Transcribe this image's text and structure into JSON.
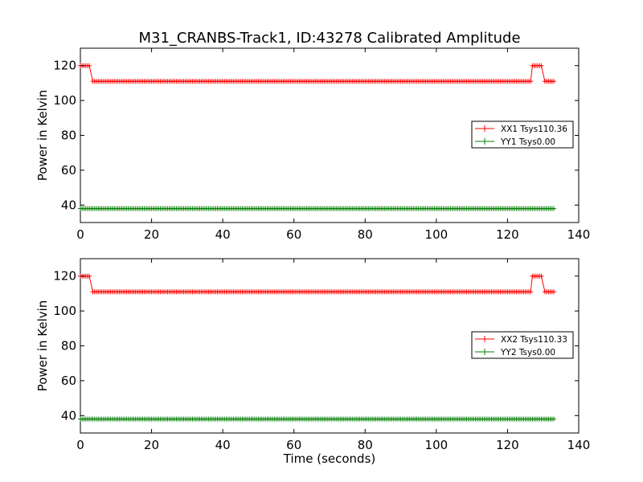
{
  "chart_data": {
    "title": "M31_CRANBS-Track1, ID:43278 Calibrated Amplitude",
    "xlabel": "Time (seconds)",
    "grid": false,
    "panels": [
      {
        "type": "line",
        "ylabel": "Power in Kelvin",
        "xlim": [
          0,
          140
        ],
        "ylim": [
          30,
          130
        ],
        "xticks": [
          "0",
          "20",
          "40",
          "60",
          "80",
          "100",
          "120",
          "140"
        ],
        "yticks": [
          "40",
          "60",
          "80",
          "100",
          "120"
        ],
        "legend_position": "center-right",
        "series": [
          {
            "name": "XX1 Tsys110.36",
            "color": "#ff0000",
            "marker": "+",
            "x_range": [
              0,
              133
            ],
            "segments": [
              {
                "x": [
                  0,
                  2.5
                ],
                "y": 120
              },
              {
                "x": [
                  3.5,
                  126.5
                ],
                "y": 111
              },
              {
                "x": [
                  127,
                  129.5
                ],
                "y": 120
              },
              {
                "x": [
                  130.5,
                  133
                ],
                "y": 111
              }
            ]
          },
          {
            "name": "YY1 Tsys0.00",
            "color": "#008000",
            "marker": "+",
            "x_range": [
              0,
              133
            ],
            "segments": [
              {
                "x": [
                  0,
                  133
                ],
                "y": 38
              }
            ]
          }
        ]
      },
      {
        "type": "line",
        "ylabel": "Power in Kelvin",
        "xlim": [
          0,
          140
        ],
        "ylim": [
          30,
          130
        ],
        "xticks": [
          "0",
          "20",
          "40",
          "60",
          "80",
          "100",
          "120",
          "140"
        ],
        "yticks": [
          "40",
          "60",
          "80",
          "100",
          "120"
        ],
        "legend_position": "center-right",
        "series": [
          {
            "name": "XX2 Tsys110.33",
            "color": "#ff0000",
            "marker": "+",
            "x_range": [
              0,
              133
            ],
            "segments": [
              {
                "x": [
                  0,
                  2.5
                ],
                "y": 120
              },
              {
                "x": [
                  3.5,
                  126.5
                ],
                "y": 111
              },
              {
                "x": [
                  127,
                  129.5
                ],
                "y": 120
              },
              {
                "x": [
                  130.5,
                  133
                ],
                "y": 111
              }
            ]
          },
          {
            "name": "YY2 Tsys0.00",
            "color": "#008000",
            "marker": "+",
            "x_range": [
              0,
              133
            ],
            "segments": [
              {
                "x": [
                  0,
                  133
                ],
                "y": 38
              }
            ]
          }
        ]
      }
    ]
  }
}
